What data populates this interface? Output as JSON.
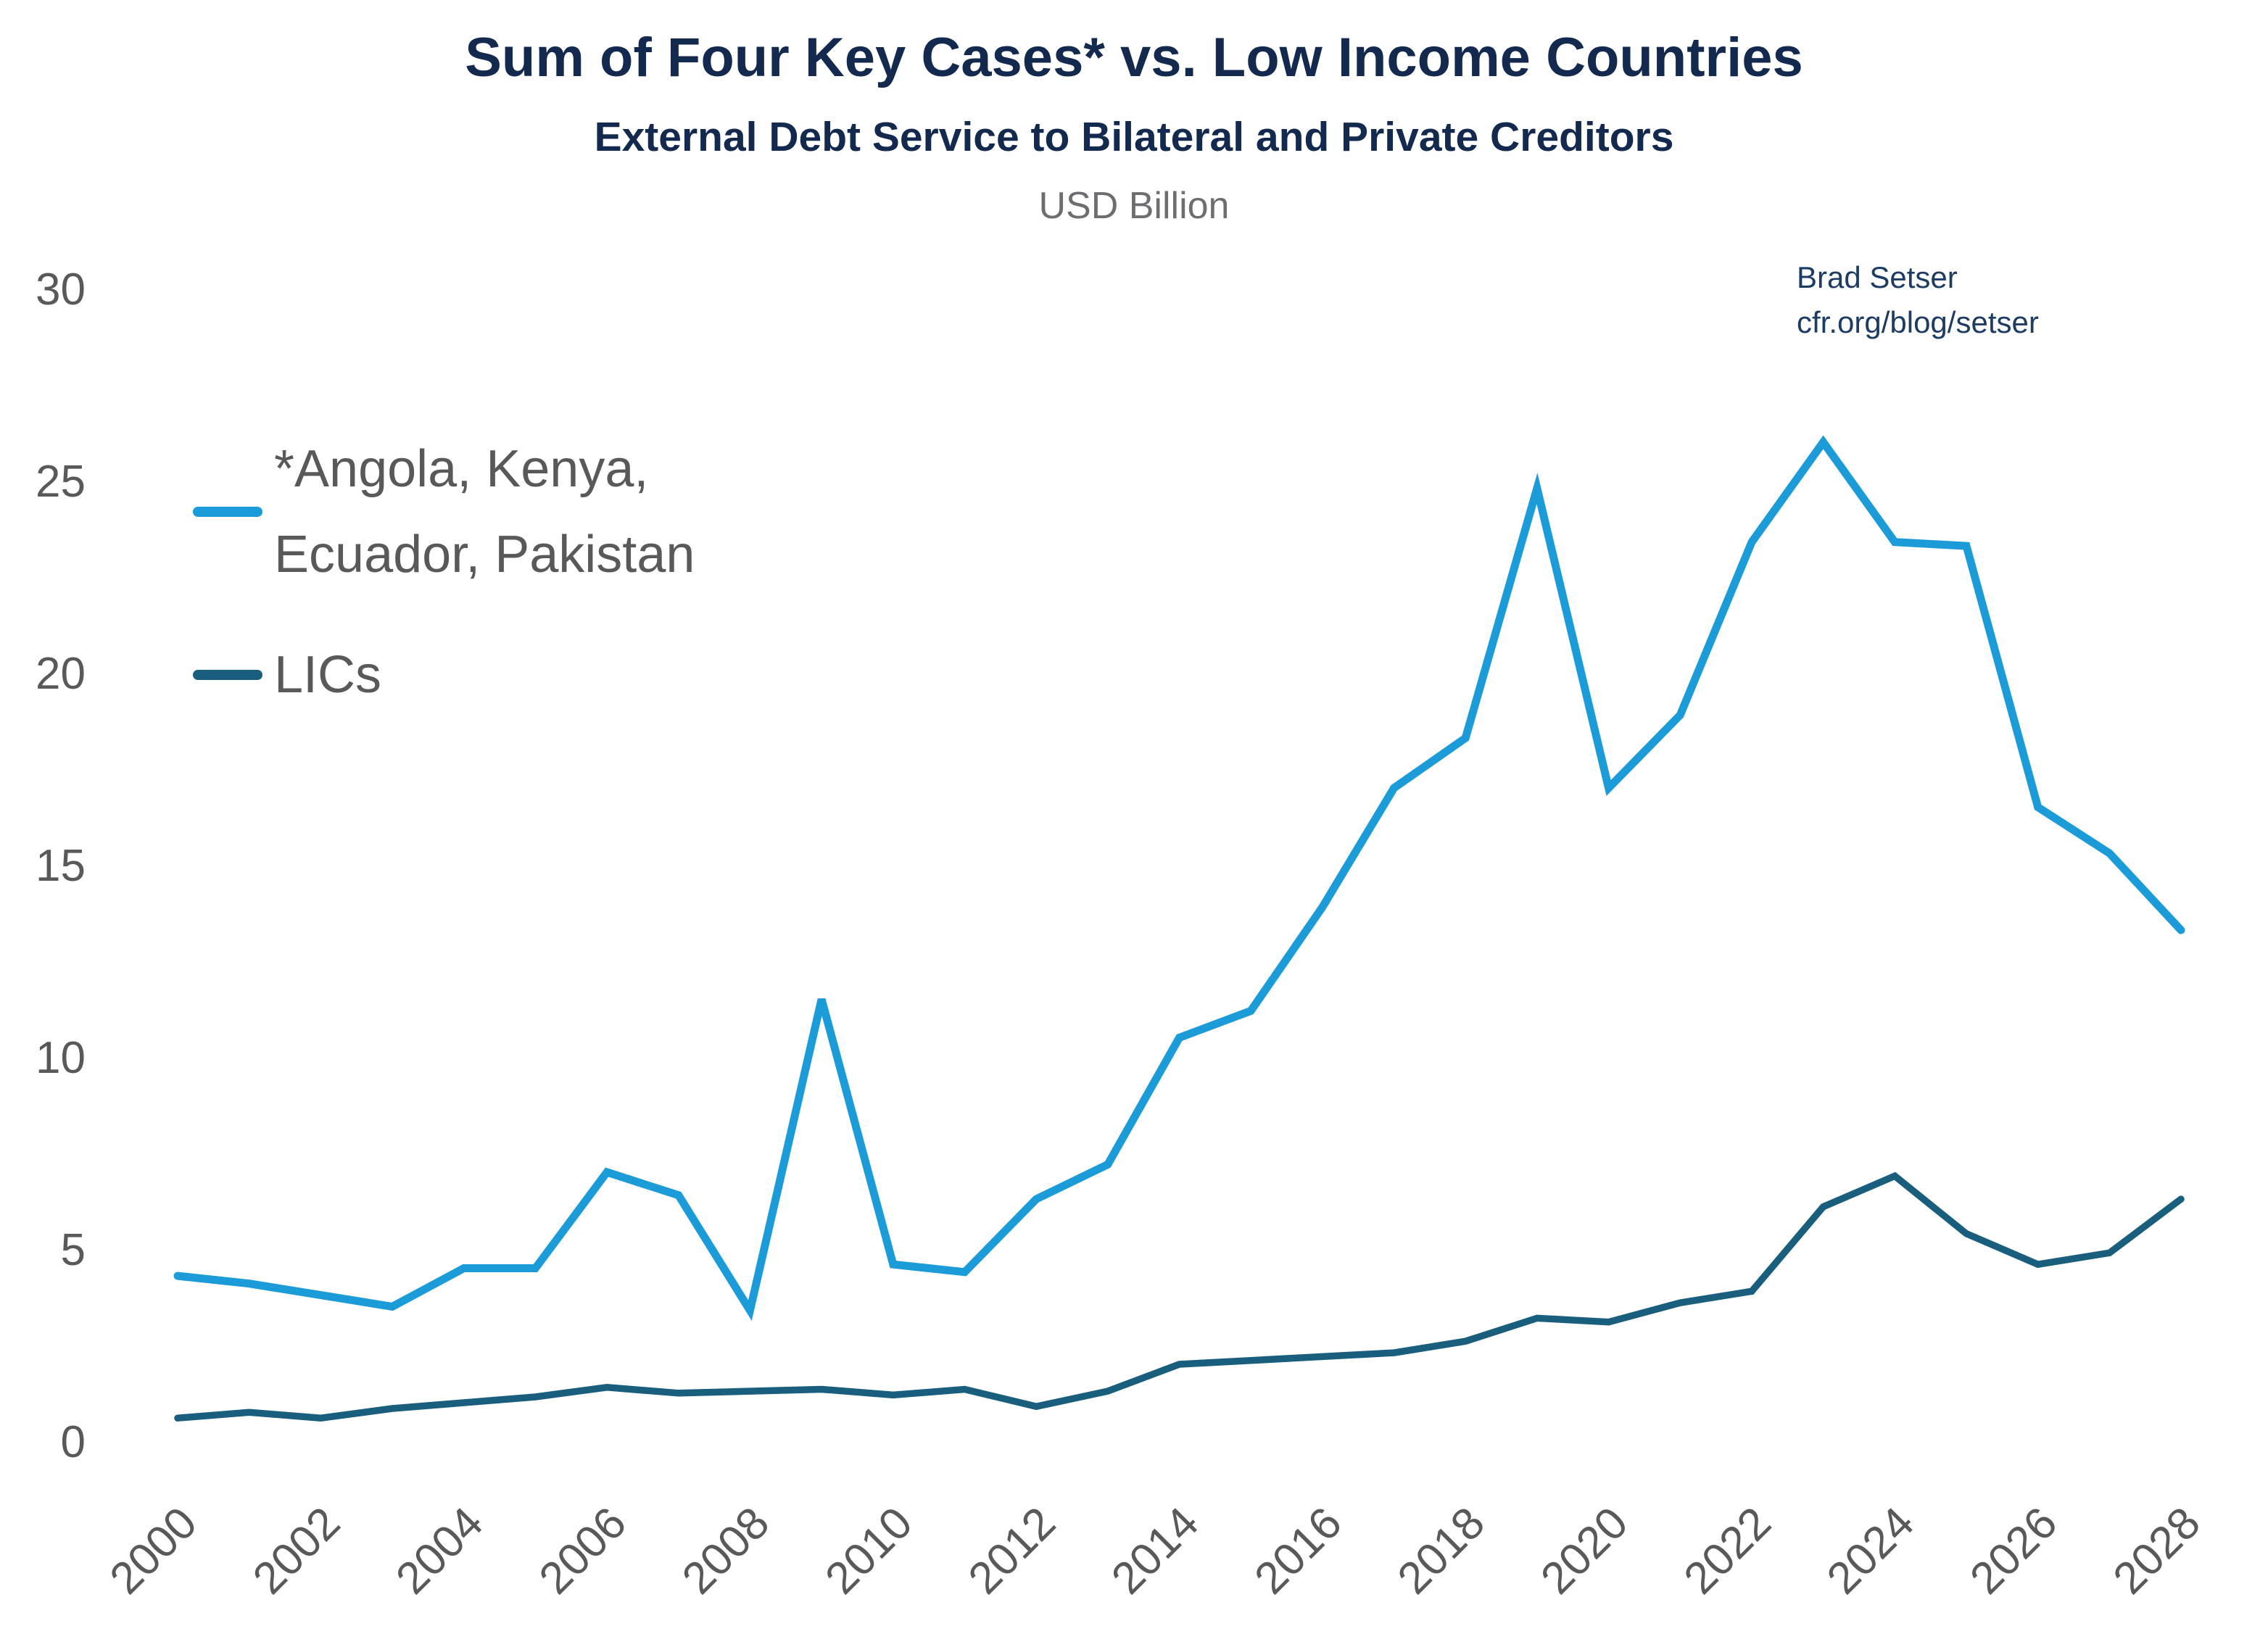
{
  "header": {
    "title": "Sum of Four Key Cases* vs. Low Income Countries",
    "subtitle": "External Debt Service to Bilateral and Private Creditors",
    "units_label": "USD Billion"
  },
  "attribution": {
    "line1": "Brad Setser",
    "line2": "cfr.org/blog/setser"
  },
  "legend": {
    "series1_line1": "*Angola, Kenya,",
    "series1_line2": "Ecuador, Pakistan",
    "series2_label": "LICs"
  },
  "colors": {
    "series1_light_blue": "#1B9CD8",
    "series2_dark_teal": "#1A5E7E",
    "title_navy": "#14294E",
    "attribution_navy": "#1D3C63",
    "text_gray": "#59595B",
    "units_gray": "#6D6E71"
  },
  "chart_data": {
    "type": "line",
    "title": "Sum of Four Key Cases* vs. Low Income Countries",
    "subtitle": "External Debt Service to Bilateral and Private Creditors",
    "ylabel": "USD Billion",
    "xlabel": "",
    "grid": false,
    "legend_position": "upper-left-inside",
    "ylim": [
      0,
      30
    ],
    "y_ticks": [
      0,
      5,
      10,
      15,
      20,
      25,
      30
    ],
    "x": [
      2000,
      2001,
      2002,
      2003,
      2004,
      2005,
      2006,
      2007,
      2008,
      2009,
      2010,
      2011,
      2012,
      2013,
      2014,
      2015,
      2016,
      2017,
      2018,
      2019,
      2020,
      2021,
      2022,
      2023,
      2024,
      2025,
      2026,
      2027,
      2028
    ],
    "x_tick_labels": [
      "2000",
      "2002",
      "2004",
      "2006",
      "2008",
      "2010",
      "2012",
      "2014",
      "2016",
      "2018",
      "2020",
      "2022",
      "2024",
      "2026",
      "2028"
    ],
    "series": [
      {
        "name": "*Angola, Kenya, Ecuador, Pakistan",
        "color": "#1B9CD8",
        "values": [
          4.3,
          4.1,
          3.8,
          3.5,
          4.5,
          4.5,
          7.0,
          6.4,
          3.4,
          11.5,
          4.6,
          4.4,
          6.3,
          7.2,
          10.5,
          11.2,
          13.9,
          17.0,
          18.3,
          24.8,
          17.0,
          18.9,
          23.4,
          26.0,
          23.4,
          23.3,
          16.5,
          15.3,
          13.3
        ]
      },
      {
        "name": "LICs",
        "color": "#1A5E7E",
        "values": [
          0.6,
          0.75,
          0.6,
          0.85,
          1.0,
          1.15,
          1.4,
          1.25,
          1.3,
          1.35,
          1.2,
          1.35,
          0.9,
          1.3,
          2.0,
          2.1,
          2.2,
          2.3,
          2.6,
          3.2,
          3.1,
          3.6,
          3.9,
          6.1,
          6.9,
          5.4,
          4.6,
          4.9,
          6.3
        ]
      }
    ]
  }
}
